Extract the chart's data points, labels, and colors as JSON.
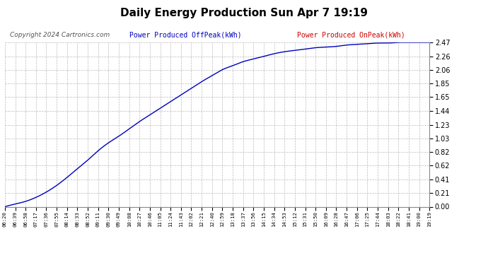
{
  "title": "Daily Energy Production Sun Apr 7 19:19",
  "copyright": "Copyright 2024 Cartronics.com",
  "legend_offpeak": "Power Produced OffPeak(kWh)",
  "legend_onpeak": "Power Produced OnPeak(kWh)",
  "offpeak_color": "#0000bb",
  "onpeak_color": "#cc0000",
  "line_color": "#0000bb",
  "bg_color": "#ffffff",
  "plot_bg": "#ffffff",
  "grid_color": "#aaaaaa",
  "yticks": [
    0.0,
    0.21,
    0.41,
    0.62,
    0.82,
    1.03,
    1.23,
    1.44,
    1.65,
    1.85,
    2.06,
    2.26,
    2.47
  ],
  "ymax": 2.47,
  "ymin": 0.0,
  "xtick_labels": [
    "06:20",
    "06:39",
    "06:58",
    "07:17",
    "07:36",
    "07:55",
    "08:14",
    "08:33",
    "08:52",
    "09:11",
    "09:30",
    "09:49",
    "10:08",
    "10:27",
    "10:46",
    "11:05",
    "11:24",
    "11:43",
    "12:02",
    "12:21",
    "12:40",
    "12:59",
    "13:18",
    "13:37",
    "13:56",
    "14:15",
    "14:34",
    "14:53",
    "15:12",
    "15:31",
    "15:50",
    "16:09",
    "16:28",
    "16:47",
    "17:06",
    "17:25",
    "17:44",
    "18:03",
    "18:22",
    "18:41",
    "19:00",
    "19:19"
  ],
  "curve_y": [
    0.0,
    0.04,
    0.08,
    0.14,
    0.22,
    0.32,
    0.44,
    0.57,
    0.7,
    0.84,
    0.96,
    1.06,
    1.17,
    1.28,
    1.38,
    1.48,
    1.58,
    1.68,
    1.78,
    1.88,
    1.97,
    2.06,
    2.12,
    2.18,
    2.22,
    2.26,
    2.3,
    2.33,
    2.35,
    2.37,
    2.39,
    2.4,
    2.41,
    2.43,
    2.44,
    2.45,
    2.46,
    2.46,
    2.47,
    2.47,
    2.47,
    2.47
  ]
}
